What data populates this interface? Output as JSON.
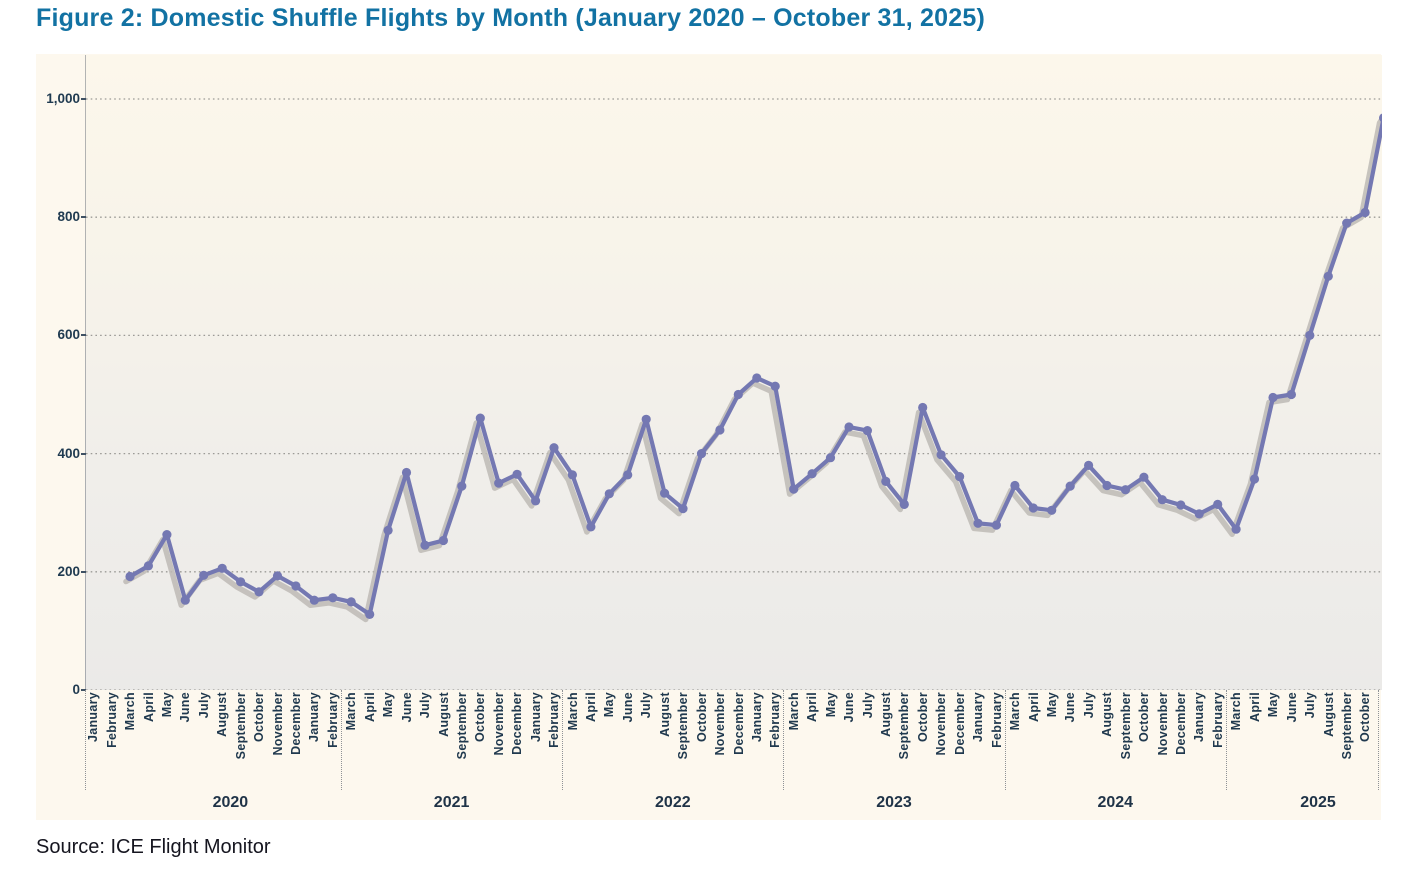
{
  "figure": {
    "title": "Figure 2: Domestic Shuffle Flights by Month (January 2020 – October 31, 2025)",
    "source": "Source: ICE Flight Monitor"
  },
  "chart_data": {
    "type": "line",
    "title": "Domestic Shuffle Flights by Month (January 2020 – October 31, 2025)",
    "grid": "horizontal-dotted",
    "legend": "none",
    "x_axis": {
      "month_names": [
        "January",
        "February",
        "March",
        "April",
        "May",
        "June",
        "July",
        "August",
        "September",
        "October",
        "November",
        "December"
      ],
      "years": [
        "2020",
        "2021",
        "2022",
        "2023",
        "2024",
        "2025"
      ]
    },
    "y_axis": {
      "ticks": [
        0,
        200,
        400,
        600,
        800,
        1000
      ],
      "tick_labels": [
        "0",
        "200",
        "400",
        "600",
        "800",
        "1,000"
      ],
      "range": [
        0,
        1075
      ]
    },
    "series": [
      {
        "name": "Domestic Shuffle Flights",
        "data_by_year": [
          {
            "year": "2020",
            "values": [
              192,
              210,
              263,
              152,
              194,
              206,
              183,
              166,
              193,
              176,
              152,
              156
            ]
          },
          {
            "year": "2021",
            "values": [
              149,
              128,
              270,
              368,
              245,
              253,
              345,
              460,
              350,
              365,
              320,
              410
            ]
          },
          {
            "year": "2022",
            "values": [
              364,
              276,
              332,
              364,
              458,
              333,
              307,
              400,
              440,
              500,
              528,
              514
            ]
          },
          {
            "year": "2023",
            "values": [
              340,
              366,
              393,
              445,
              439,
              353,
              314,
              478,
              398,
              361,
              282,
              279
            ]
          },
          {
            "year": "2024",
            "values": [
              346,
              308,
              304,
              345,
              380,
              346,
              339,
              360,
              322,
              313,
              298,
              314
            ]
          },
          {
            "year": "2025",
            "values": [
              272,
              357,
              495,
              500,
              600,
              700,
              790,
              808,
              968,
              1015
            ]
          }
        ]
      }
    ],
    "colors": {
      "line": "#7478b2",
      "line_shadow": "#bdbab5",
      "gridline": "#9b9a96",
      "title": "#1272a3",
      "axis_text": "#1f3a50",
      "plot_bg_top": "#fcf7eb",
      "plot_bg_bottom": "#ebeae8",
      "figure_bg": "#fdf8ee"
    }
  }
}
